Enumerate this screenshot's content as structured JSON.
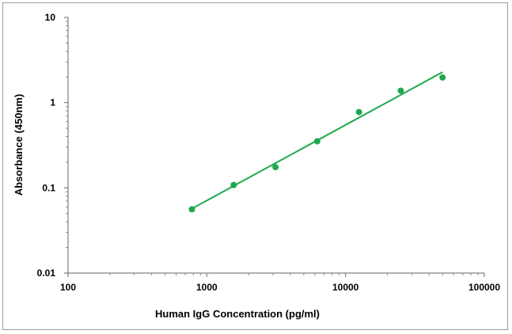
{
  "chart_data": {
    "type": "scatter",
    "xlabel": "Human IgG Concentration (pg/ml)",
    "ylabel": "Absorbance (450nm)",
    "xscale": "log",
    "yscale": "log",
    "xlim": [
      100,
      100000
    ],
    "ylim": [
      0.01,
      10
    ],
    "xticks": [
      "100",
      "1000",
      "10000",
      "100000"
    ],
    "yticks": [
      "0.01",
      "0.1",
      "1",
      "10"
    ],
    "grid": false,
    "legend": "none",
    "series": [
      {
        "points": [
          {
            "x": 781.25,
            "y": 0.056
          },
          {
            "x": 1562.5,
            "y": 0.108
          },
          {
            "x": 3125,
            "y": 0.175
          },
          {
            "x": 6250,
            "y": 0.352
          },
          {
            "x": 12500,
            "y": 0.775
          },
          {
            "x": 25000,
            "y": 1.38
          },
          {
            "x": 50000,
            "y": 1.97
          }
        ]
      }
    ],
    "trendline": {
      "from": {
        "x": 781.25,
        "y": 0.057
      },
      "to": {
        "x": 50000,
        "y": 2.28
      }
    },
    "marker_color": "#1fa84f",
    "line_color": "#1fa84f"
  }
}
